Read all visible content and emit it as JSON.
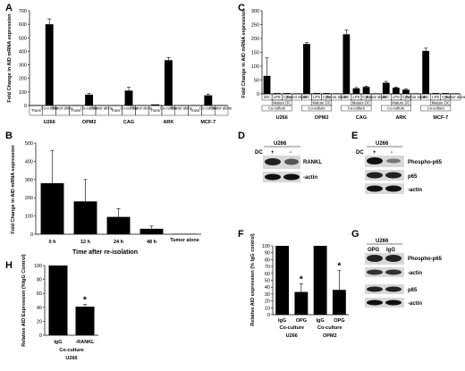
{
  "panels": {
    "A": "A",
    "B": "B",
    "C": "C",
    "D": "D",
    "E": "E",
    "F": "F",
    "G": "G",
    "H": "H"
  },
  "chart_data": [
    {
      "panel": "A",
      "type": "bar",
      "ylabel": "Fold Change in AID mRNA expression",
      "ylim": [
        0,
        700
      ],
      "yticks": [
        0,
        100,
        200,
        300,
        400,
        500,
        600,
        700
      ],
      "condition_labels": [
        "Trans",
        "Co-culture",
        "Tumor alone"
      ],
      "cell_lines": [
        "U266",
        "OPM2",
        "CAG",
        "ARK",
        "MCF-7"
      ],
      "values": [
        [
          3,
          600,
          2
        ],
        [
          3,
          80,
          2
        ],
        [
          3,
          110,
          2
        ],
        [
          8,
          335,
          2
        ],
        [
          3,
          75,
          2
        ]
      ],
      "errors": [
        [
          0,
          40,
          0
        ],
        [
          0,
          8,
          0
        ],
        [
          0,
          25,
          0
        ],
        [
          0,
          20,
          0
        ],
        [
          0,
          10,
          0
        ]
      ]
    },
    {
      "panel": "B",
      "type": "bar",
      "ylabel": "Fold Change in AID mRNA expression",
      "xlabel": "Time after re-isolation",
      "ylim": [
        0,
        500
      ],
      "yticks": [
        0,
        100,
        200,
        300,
        400,
        500
      ],
      "categories": [
        "0 h",
        "12 h",
        "24 h",
        "48 h",
        "Tumor alone"
      ],
      "values": [
        280,
        180,
        95,
        30,
        2
      ],
      "errors": [
        180,
        120,
        45,
        15,
        0
      ]
    },
    {
      "panel": "C",
      "type": "bar",
      "ylabel": "Fold Change in AID mRNA expression",
      "ylim": [
        0,
        300
      ],
      "yticks": [
        0,
        50,
        100,
        150,
        200,
        250,
        300
      ],
      "row1": [
        "iDC",
        "LPS",
        "Cyto",
        "Tumor alone"
      ],
      "row2": [
        "Mature DC"
      ],
      "row3": "Co-culture",
      "cell_lines": [
        "U266",
        "OPM2",
        "CAG",
        "ARK",
        "MCF-7"
      ],
      "values": [
        [
          65,
          3,
          3,
          2
        ],
        [
          180,
          3,
          3,
          2
        ],
        [
          215,
          20,
          25,
          2
        ],
        [
          40,
          22,
          15,
          2
        ],
        [
          155,
          3,
          3,
          2
        ]
      ],
      "errors": [
        [
          65,
          0,
          0,
          0
        ],
        [
          5,
          0,
          0,
          0
        ],
        [
          15,
          3,
          3,
          0
        ],
        [
          5,
          3,
          3,
          0
        ],
        [
          10,
          0,
          0,
          0
        ]
      ]
    },
    {
      "panel": "F",
      "type": "bar",
      "ylabel": "Relative AID expression (% IgG control)",
      "ylim": [
        0,
        100
      ],
      "yticks": [
        0,
        10,
        20,
        30,
        40,
        50,
        60,
        70,
        80,
        90,
        100
      ],
      "categories": [
        "IgG",
        "OPG",
        "IgG",
        "OPG"
      ],
      "group_label": "Co-culture",
      "cell_lines": [
        "U266",
        "OPM2"
      ],
      "values": [
        100,
        33,
        100,
        36
      ],
      "errors": [
        0,
        12,
        0,
        28
      ],
      "significance": [
        "",
        "*",
        "",
        "*"
      ]
    },
    {
      "panel": "H",
      "type": "bar",
      "ylabel": "Relative AID Expression (%IgG Control)",
      "ylim": [
        0,
        100
      ],
      "yticks": [
        0,
        20,
        40,
        60,
        80,
        100
      ],
      "categories": [
        "IgG",
        "-RANKL"
      ],
      "group_label": "Co-culture",
      "cell_line": "U266",
      "values": [
        100,
        41
      ],
      "errors": [
        0,
        3
      ],
      "significance": [
        "",
        "*"
      ]
    }
  ],
  "blots": {
    "D": {
      "title": "U266",
      "dc_label": "DC",
      "lanes": [
        "+",
        "-"
      ],
      "rows": [
        "RANKL",
        "-actin"
      ]
    },
    "E": {
      "title": "U266",
      "dc_label": "DC",
      "lanes": [
        "+",
        "-"
      ],
      "rows": [
        "Phospho-p65",
        "p65",
        "-actin"
      ]
    },
    "G": {
      "title": "U266",
      "lanes": [
        "OPG",
        "IgG"
      ],
      "rows": [
        "Phospho-p65",
        "-actin",
        "p65",
        "-actin"
      ]
    }
  }
}
